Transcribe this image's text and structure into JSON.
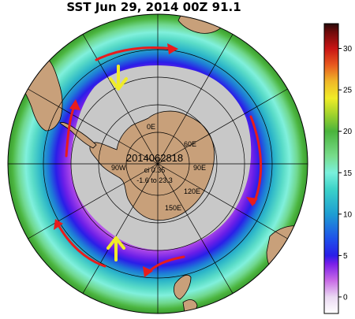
{
  "title": "SST Jun 29, 2014 00Z 91.1",
  "center_info": {
    "date_code": "2014062818",
    "contour_interval": "ci 0.35",
    "range": "-1.6 to 23.3"
  },
  "longitude_labels": [
    "0E",
    "60E",
    "90E",
    "120E",
    "150E",
    "90W"
  ],
  "colorbar": {
    "ticks": [
      0,
      5,
      10,
      15,
      20,
      25,
      30
    ],
    "min": -2,
    "max": 33,
    "stops": [
      {
        "v": -2,
        "c": "#ffffff"
      },
      {
        "v": 0,
        "c": "#ead8f2"
      },
      {
        "v": 2,
        "c": "#c86ae6"
      },
      {
        "v": 4,
        "c": "#7a1ee8"
      },
      {
        "v": 5,
        "c": "#2a1ee8"
      },
      {
        "v": 7,
        "c": "#1e50ea"
      },
      {
        "v": 10,
        "c": "#1e9ed2"
      },
      {
        "v": 13,
        "c": "#3cd2c8"
      },
      {
        "v": 15,
        "c": "#7af0dc"
      },
      {
        "v": 17,
        "c": "#78dc8c"
      },
      {
        "v": 20,
        "c": "#4ab43c"
      },
      {
        "v": 22,
        "c": "#a0d22c"
      },
      {
        "v": 24,
        "c": "#f0ec28"
      },
      {
        "v": 26,
        "c": "#f0b828"
      },
      {
        "v": 28,
        "c": "#e85a1e"
      },
      {
        "v": 30,
        "c": "#c81414"
      },
      {
        "v": 32,
        "c": "#6e0a0a"
      },
      {
        "v": 33,
        "c": "#280a0a"
      }
    ]
  },
  "colors": {
    "land": "#c8a07a",
    "sea_ice": "#c8c8c8",
    "current_arrow": "#e81c1c",
    "upwelling_arrow": "#f0ec28"
  }
}
